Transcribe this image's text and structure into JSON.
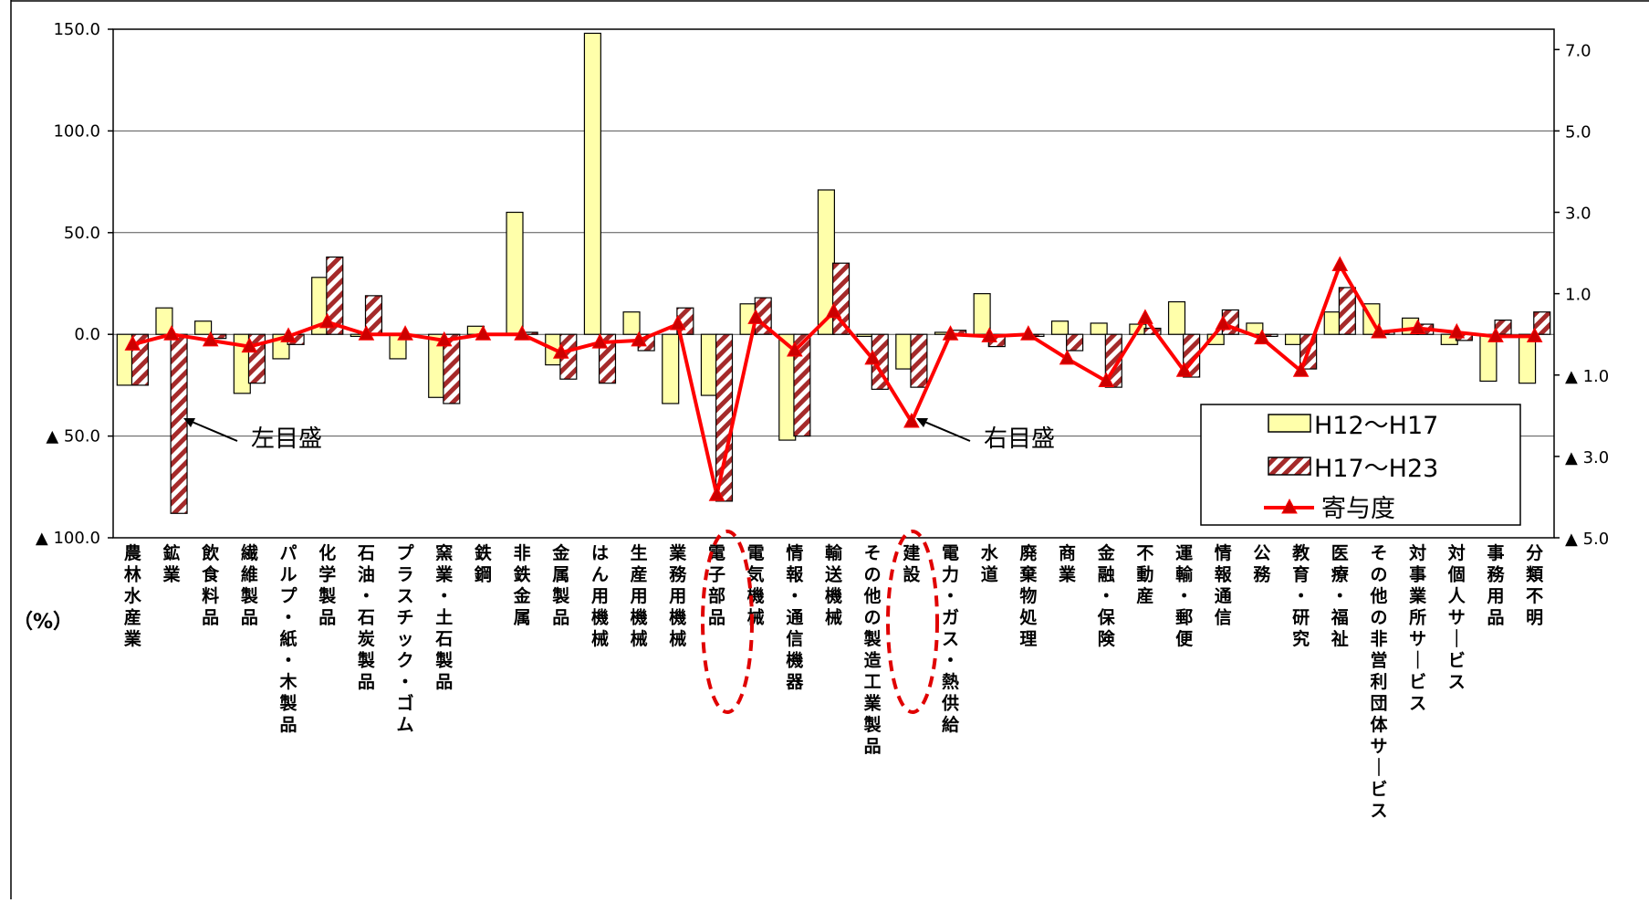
{
  "chart_data": {
    "type": "bar",
    "unit_label": "（%）",
    "categories": [
      "農林水産業",
      "鉱業",
      "飲食料品",
      "繊維製品",
      "パルプ・紙・木製品",
      "化学製品",
      "石油・石炭製品",
      "プラスチック・ゴム",
      "窯業・土石製品",
      "鉄鋼",
      "非鉄金属",
      "金属製品",
      "はん用機械",
      "生産用機械",
      "業務用機械",
      "電子部品",
      "電気機械",
      "情報・通信機器",
      "輸送機械",
      "その他の製造工業製品",
      "建設",
      "電力・ガス・熱供給",
      "水道",
      "廃棄物処理",
      "商業",
      "金融・保険",
      "不動産",
      "運輸・郵便",
      "情報通信",
      "公務",
      "教育・研究",
      "医療・福祉",
      "その他の非営利団体サービス",
      "対事業所サービス",
      "対個人サービス",
      "事務用品",
      "分類不明"
    ],
    "series": [
      {
        "name": "H12～H17",
        "axis": "left",
        "color": "#ffffaa",
        "values": [
          -25,
          13,
          6.5,
          -29,
          -12,
          28,
          -1,
          -12,
          -31,
          4,
          60,
          -15,
          148,
          11,
          -34,
          -30,
          15,
          -52,
          71,
          -1,
          -17,
          1,
          20,
          0,
          6.5,
          5.5,
          5,
          16,
          -5,
          5.5,
          -5,
          11,
          15,
          8,
          -5,
          -23,
          -24
        ]
      },
      {
        "name": "H17～H23",
        "axis": "left",
        "color": "#a52a2a",
        "pattern": "diagonal-stripes",
        "values": [
          -25,
          -88,
          -2,
          -24,
          -5,
          38,
          19,
          0,
          -34,
          0,
          1,
          -22,
          -24,
          -8,
          13,
          -82,
          18,
          -50,
          35,
          -27,
          -26,
          2,
          -6,
          -1,
          -8,
          -26,
          3,
          -21,
          12,
          -1,
          -17,
          23,
          1,
          5,
          -3,
          7,
          11
        ]
      },
      {
        "name": "寄与度",
        "axis": "right",
        "type": "line",
        "color": "#ff0000",
        "marker": "triangle",
        "values": [
          -0.25,
          0.0,
          -0.15,
          -0.3,
          -0.05,
          0.3,
          0.0,
          0.0,
          -0.15,
          0.0,
          0.0,
          -0.45,
          -0.2,
          -0.15,
          0.25,
          -3.95,
          0.4,
          -0.4,
          0.55,
          -0.6,
          -2.15,
          0.0,
          -0.05,
          0.0,
          -0.6,
          -1.15,
          0.4,
          -0.9,
          0.25,
          -0.1,
          -0.9,
          1.7,
          0.05,
          0.15,
          0.05,
          -0.05,
          -0.05
        ]
      }
    ],
    "y_left": {
      "range": [
        -100,
        150
      ],
      "tick_values": [
        150,
        100,
        50,
        0,
        -50,
        -100
      ],
      "tick_labels": [
        "150.0",
        "100.0",
        "50.0",
        "0.0",
        "▲ 50.0",
        "▲ 100.0"
      ]
    },
    "y_right": {
      "range": [
        -5,
        7.5
      ],
      "tick_values": [
        7,
        5,
        3,
        1,
        -1,
        -3,
        -5
      ],
      "tick_labels": [
        "7.0",
        "5.0",
        "3.0",
        "1.0",
        "▲ 1.0",
        "▲ 3.0",
        "▲ 5.0"
      ]
    },
    "grid": true,
    "legend_position": "bottom-right",
    "annotations": [
      {
        "text": "左目盛",
        "points_to": "鉱業"
      },
      {
        "text": "右目盛",
        "points_to": "建設"
      }
    ],
    "highlighted_categories": [
      "電子部品",
      "建設"
    ]
  }
}
